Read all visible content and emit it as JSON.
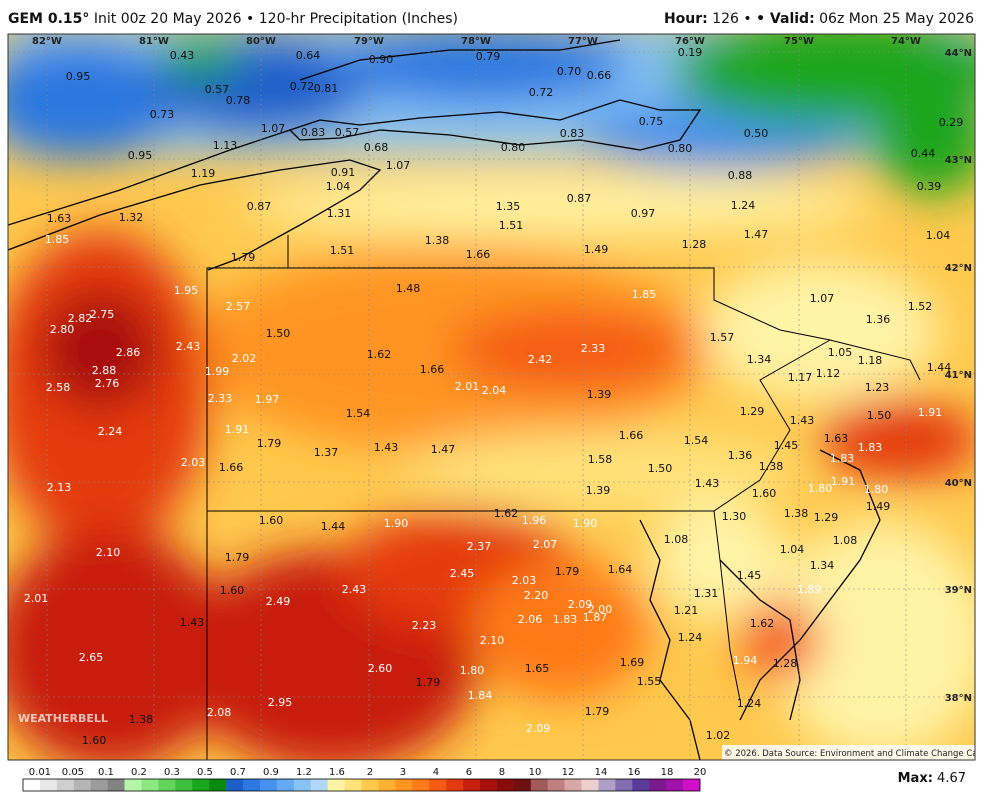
{
  "header": {
    "model": "GEM 0.15°",
    "init": "Init 00z 20 May 2026",
    "separator": "•",
    "product": "120-hr Precipitation (Inches)",
    "hour_label": "Hour:",
    "hour": "126",
    "valid_label": "• Valid:",
    "valid": "06z Mon 25 May 2026"
  },
  "map": {
    "longitudes": [
      "82°W",
      "81°W",
      "80°W",
      "79°W",
      "78°W",
      "77°W",
      "76°W",
      "75°W",
      "74°W"
    ],
    "latitudes": [
      "44°N",
      "43°N",
      "42°N",
      "41°N",
      "40°N",
      "39°N",
      "38°N"
    ],
    "labels": [
      "0.95",
      "0.43",
      "0.64",
      "0.90",
      "0.79",
      "0.70",
      "0.66",
      "0.19",
      "0.57",
      "0.78",
      "0.72",
      "0.81",
      "0.72",
      "0.73",
      "1.07",
      "0.83",
      "0.57",
      "0.83",
      "0.75",
      "0.50",
      "0.29",
      "0.95",
      "1.13",
      "0.68",
      "0.80",
      "0.80",
      "0.44",
      "1.19",
      "0.91",
      "1.07",
      "0.88",
      "0.39",
      "1.04",
      "1.63",
      "1.32",
      "0.87",
      "1.31",
      "1.35",
      "0.87",
      "0.97",
      "1.24",
      "1.85",
      "1.51",
      "1.38",
      "1.47",
      "1.04",
      "1.79",
      "1.51",
      "1.66",
      "1.49",
      "1.28",
      "1.95",
      "1.48",
      "1.85",
      "1.07",
      "1.52",
      "2.82",
      "2.75",
      "2.57",
      "1.36",
      "2.80",
      "1.50",
      "1.57",
      "2.86",
      "2.43",
      "2.02",
      "1.62",
      "2.33",
      "2.42",
      "1.05",
      "1.34",
      "1.18",
      "2.88",
      "1.99",
      "1.66",
      "1.17",
      "1.12",
      "1.44",
      "2.58",
      "2.76",
      "2.01",
      "2.04",
      "1.39",
      "1.23",
      "2.33",
      "1.97",
      "1.54",
      "1.29",
      "1.43",
      "1.50",
      "1.91",
      "2.24",
      "1.91",
      "1.66",
      "1.54",
      "1.63",
      "1.79",
      "1.37",
      "1.43",
      "1.47",
      "1.45",
      "1.83",
      "2.03",
      "1.58",
      "1.36",
      "1.83",
      "1.66",
      "1.50",
      "1.38",
      "1.91",
      "1.43",
      "1.80",
      "2.13",
      "1.39",
      "1.60",
      "1.80",
      "1.49",
      "1.60",
      "1.44",
      "1.90",
      "1.62",
      "1.96",
      "1.90",
      "1.30",
      "1.38",
      "1.29",
      "1.08",
      "2.37",
      "2.07",
      "1.04",
      "1.08",
      "2.10",
      "1.79",
      "1.34",
      "2.45",
      "1.79",
      "1.64",
      "1.45",
      "2.03",
      "2.43",
      "1.60",
      "1.31",
      "1.89",
      "2.01",
      "2.49",
      "2.20",
      "2.09",
      "2.00",
      "1.21",
      "1.43",
      "2.23",
      "2.06",
      "1.83",
      "1.87",
      "1.62",
      "2.10",
      "1.24",
      "2.65",
      "2.60",
      "1.80",
      "1.65",
      "1.69",
      "1.94",
      "1.28",
      "1.79",
      "1.55",
      "1.84",
      "2.95",
      "1.24",
      "2.08",
      "1.79",
      "1.38",
      "2.09",
      "1.02",
      "1.60"
    ],
    "credit": "© 2026. Data Source: Environment and Climate Change Canada.",
    "watermark": "WEATHERBELL"
  },
  "colorbar": {
    "ticks": [
      "0.01",
      "0.05",
      "0.1",
      "0.2",
      "0.3",
      "0.5",
      "0.7",
      "0.9",
      "1.2",
      "1.6",
      "2",
      "3",
      "4",
      "6",
      "8",
      "10",
      "12",
      "14",
      "16",
      "18",
      "20"
    ],
    "colors": [
      "#ffffff",
      "#e8e8e8",
      "#cfcfcf",
      "#b5b5b5",
      "#9c9c9c",
      "#838383",
      "#b4f5a8",
      "#8ee882",
      "#63d45c",
      "#3cbf3c",
      "#1aa61a",
      "#0b8a12",
      "#1c5fc9",
      "#2a78e0",
      "#4691ee",
      "#64aaf2",
      "#88c3f5",
      "#b1d9f7",
      "#fff3a6",
      "#ffe27a",
      "#ffc94d",
      "#ffb030",
      "#ff9420",
      "#ff7a18",
      "#f55a14",
      "#e43a10",
      "#c81e0e",
      "#a8100c",
      "#8a0c0a",
      "#6e1010",
      "#a35a5a",
      "#c08080",
      "#d8a8a8",
      "#ecd0d0",
      "#b0a0c8",
      "#8070b0",
      "#5a3a9c",
      "#7a1a8c",
      "#a012a8",
      "#d010c8"
    ]
  },
  "max": {
    "label": "Max:",
    "value": "4.67"
  }
}
